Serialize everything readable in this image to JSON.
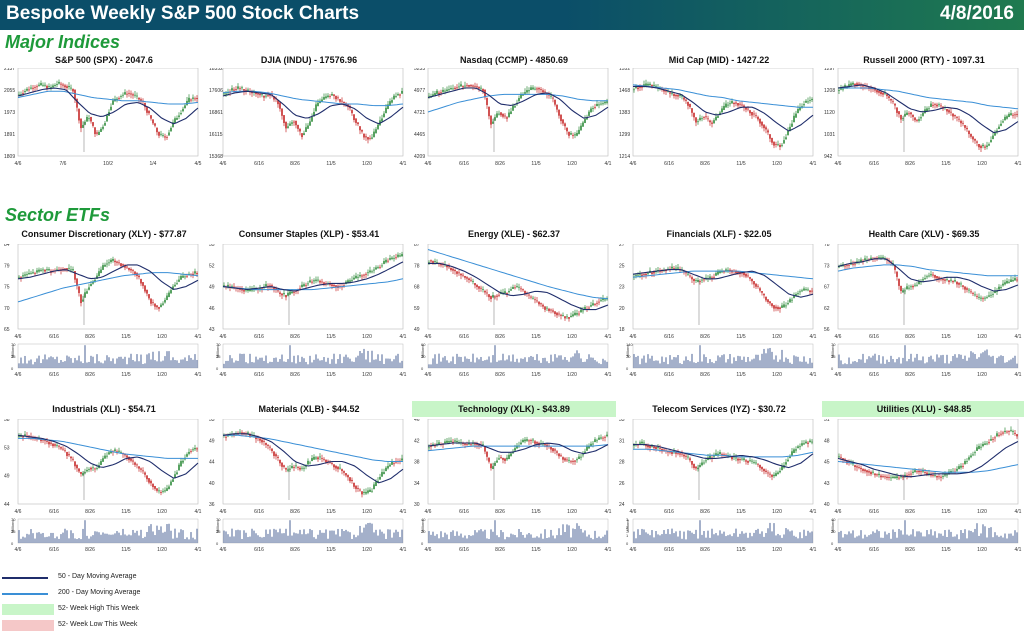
{
  "header": {
    "title": "Bespoke Weekly S&P 500 Stock Charts",
    "date": "4/8/2016"
  },
  "colors": {
    "header_bg": "#0b4e69",
    "header_bg2": "#1f7a4f",
    "section": "#1e9a3a",
    "ma50": "#1f2d6b",
    "ma200": "#3a8fd6",
    "up": "#2e8b3a",
    "down": "#c62828",
    "volume": "#7d8fb3",
    "high_bg": "#c8f5c8",
    "low_bg": "#f5c8c8"
  },
  "sections": {
    "indices": "Major Indices",
    "sectors": "Sector ETFs"
  },
  "legend": {
    "ma50": "50 - Day Moving Average",
    "ma200": "200 - Day Moving Average",
    "high": "52- Week High This Week",
    "low": "52- Week Low This Week"
  },
  "chart_data": [
    {
      "type": "line",
      "title": "S&P 500 (SPX) - 2047.6",
      "yticks": [
        "2137",
        "2055",
        "1973",
        "1891",
        "1809"
      ],
      "xticks": [
        "4/6",
        "7/6",
        "10/2",
        "1/4",
        "4/5"
      ],
      "ylim": [
        1809,
        2137
      ],
      "last": 2047.6,
      "shape": [
        0.72,
        0.78,
        0.82,
        0.84,
        0.8,
        0.86,
        0.82,
        0.78,
        0.3,
        0.45,
        0.2,
        0.35,
        0.62,
        0.7,
        0.74,
        0.7,
        0.62,
        0.42,
        0.22,
        0.18,
        0.38,
        0.52,
        0.66,
        0.68
      ],
      "ma50": [
        0.7,
        0.74,
        0.78,
        0.8,
        0.78,
        0.62,
        0.48,
        0.44,
        0.5,
        0.6,
        0.62,
        0.55,
        0.42,
        0.35,
        0.42,
        0.55
      ],
      "ma200": [
        0.68,
        0.72,
        0.76,
        0.76,
        0.72,
        0.68,
        0.66,
        0.64,
        0.64,
        0.62,
        0.6,
        0.6,
        0.62
      ],
      "highlight": "none",
      "volume": false
    },
    {
      "type": "line",
      "title": "DJIA (INDU) - 17576.96",
      "yticks": [
        "18352",
        "17606",
        "16861",
        "16115",
        "15368"
      ],
      "xticks": [
        "4/6",
        "6/16",
        "8/26",
        "11/5",
        "1/20",
        "4/1"
      ],
      "ylim": [
        15368,
        18352
      ],
      "last": 17576.96,
      "shape": [
        0.72,
        0.78,
        0.8,
        0.76,
        0.74,
        0.7,
        0.72,
        0.62,
        0.3,
        0.4,
        0.2,
        0.35,
        0.6,
        0.68,
        0.72,
        0.64,
        0.58,
        0.38,
        0.2,
        0.16,
        0.35,
        0.55,
        0.7,
        0.74
      ],
      "ma50": [
        0.7,
        0.74,
        0.76,
        0.74,
        0.72,
        0.6,
        0.46,
        0.42,
        0.48,
        0.58,
        0.6,
        0.54,
        0.42,
        0.35,
        0.44,
        0.56
      ],
      "ma200": [
        0.74,
        0.76,
        0.76,
        0.74,
        0.7,
        0.66,
        0.64,
        0.62,
        0.6,
        0.6,
        0.58,
        0.58,
        0.6
      ],
      "highlight": "none",
      "volume": false
    },
    {
      "type": "line",
      "title": "Nasdaq (CCMP) - 4850.69",
      "yticks": [
        "5233",
        "4977",
        "4721",
        "4465",
        "4209"
      ],
      "xticks": [
        "4/6",
        "6/16",
        "8/26",
        "11/5",
        "1/20",
        "4/1"
      ],
      "ylim": [
        4209,
        5233
      ],
      "last": 4850.69,
      "shape": [
        0.68,
        0.74,
        0.76,
        0.8,
        0.82,
        0.84,
        0.82,
        0.78,
        0.35,
        0.5,
        0.42,
        0.58,
        0.72,
        0.78,
        0.8,
        0.74,
        0.66,
        0.42,
        0.22,
        0.2,
        0.38,
        0.55,
        0.6,
        0.62
      ],
      "ma50": [
        0.68,
        0.72,
        0.76,
        0.8,
        0.8,
        0.72,
        0.6,
        0.58,
        0.64,
        0.72,
        0.74,
        0.66,
        0.52,
        0.42,
        0.46,
        0.56
      ],
      "ma200": [
        0.5,
        0.56,
        0.62,
        0.66,
        0.7,
        0.72,
        0.72,
        0.72,
        0.72,
        0.7,
        0.66,
        0.64,
        0.64
      ],
      "highlight": "none",
      "volume": false
    },
    {
      "type": "line",
      "title": "Mid Cap (MID) - 1427.22",
      "yticks": [
        "1552",
        "1468",
        "1383",
        "1299",
        "1214"
      ],
      "xticks": [
        "4/6",
        "6/16",
        "8/26",
        "11/5",
        "1/20",
        "4/1"
      ],
      "ylim": [
        1214,
        1552
      ],
      "last": 1427.22,
      "shape": [
        0.8,
        0.82,
        0.84,
        0.8,
        0.76,
        0.72,
        0.7,
        0.6,
        0.38,
        0.45,
        0.35,
        0.48,
        0.6,
        0.62,
        0.58,
        0.5,
        0.42,
        0.28,
        0.1,
        0.08,
        0.28,
        0.5,
        0.62,
        0.66
      ],
      "ma50": [
        0.82,
        0.82,
        0.8,
        0.76,
        0.72,
        0.62,
        0.5,
        0.46,
        0.5,
        0.56,
        0.56,
        0.48,
        0.36,
        0.26,
        0.34,
        0.46
      ],
      "ma200": [
        0.84,
        0.82,
        0.8,
        0.78,
        0.74,
        0.7,
        0.68,
        0.64,
        0.62,
        0.6,
        0.58,
        0.56,
        0.56
      ],
      "highlight": "none",
      "volume": false
    },
    {
      "type": "line",
      "title": "Russell 2000 (RTY) - 1097.31",
      "yticks": [
        "1297",
        "1208",
        "1120",
        "1031",
        "942"
      ],
      "xticks": [
        "4/6",
        "6/16",
        "8/26",
        "11/5",
        "1/20",
        "4/1"
      ],
      "ylim": [
        942,
        1297
      ],
      "last": 1097.31,
      "shape": [
        0.78,
        0.82,
        0.86,
        0.84,
        0.8,
        0.76,
        0.72,
        0.6,
        0.42,
        0.5,
        0.38,
        0.5,
        0.6,
        0.58,
        0.52,
        0.44,
        0.34,
        0.2,
        0.08,
        0.06,
        0.22,
        0.38,
        0.46,
        0.48
      ],
      "ma50": [
        0.8,
        0.82,
        0.84,
        0.8,
        0.74,
        0.64,
        0.54,
        0.5,
        0.52,
        0.56,
        0.54,
        0.46,
        0.34,
        0.24,
        0.28,
        0.38
      ],
      "ma200": [
        0.8,
        0.8,
        0.8,
        0.78,
        0.76,
        0.72,
        0.68,
        0.66,
        0.64,
        0.62,
        0.58,
        0.56,
        0.54
      ],
      "highlight": "none",
      "volume": false
    },
    {
      "type": "line",
      "title": "Consumer Discretionary (XLY) - $77.87",
      "yticks": [
        "84",
        "79",
        "75",
        "70",
        "65"
      ],
      "xticks": [
        "4/6",
        "6/16",
        "8/26",
        "11/5",
        "1/20",
        "4/1"
      ],
      "ylim": [
        65,
        84
      ],
      "last": 77.87,
      "vlim": [
        "70",
        "35",
        "0"
      ],
      "shape": [
        0.62,
        0.66,
        0.68,
        0.72,
        0.7,
        0.72,
        0.74,
        0.7,
        0.3,
        0.5,
        0.62,
        0.78,
        0.84,
        0.8,
        0.74,
        0.68,
        0.52,
        0.3,
        0.22,
        0.34,
        0.52,
        0.62,
        0.66,
        0.68
      ],
      "ma50": [
        0.6,
        0.62,
        0.66,
        0.7,
        0.72,
        0.66,
        0.6,
        0.62,
        0.7,
        0.78,
        0.78,
        0.7,
        0.56,
        0.46,
        0.5,
        0.58
      ],
      "ma200": [
        0.3,
        0.36,
        0.42,
        0.48,
        0.52,
        0.56,
        0.6,
        0.64,
        0.66,
        0.68,
        0.68,
        0.66,
        0.64
      ],
      "highlight": "none",
      "volume": true
    },
    {
      "type": "line",
      "title": "Consumer Staples (XLP) - $53.41",
      "yticks": [
        "55",
        "52",
        "49",
        "46",
        "43"
      ],
      "xticks": [
        "4/6",
        "6/16",
        "8/26",
        "11/5",
        "1/20",
        "4/1"
      ],
      "ylim": [
        43,
        55
      ],
      "last": 53.41,
      "vlim": [
        "70",
        "35",
        "0"
      ],
      "shape": [
        0.5,
        0.5,
        0.46,
        0.44,
        0.46,
        0.5,
        0.52,
        0.42,
        0.38,
        0.44,
        0.5,
        0.56,
        0.58,
        0.54,
        0.52,
        0.5,
        0.56,
        0.62,
        0.66,
        0.7,
        0.76,
        0.84,
        0.88,
        0.9
      ],
      "ma50": [
        0.5,
        0.48,
        0.46,
        0.48,
        0.5,
        0.46,
        0.44,
        0.48,
        0.52,
        0.54,
        0.54,
        0.56,
        0.6,
        0.66,
        0.74,
        0.82
      ],
      "ma200": [
        0.5,
        0.48,
        0.46,
        0.46,
        0.46,
        0.46,
        0.46,
        0.48,
        0.5,
        0.52,
        0.54,
        0.56,
        0.6
      ],
      "highlight": "none",
      "volume": true
    },
    {
      "type": "line",
      "title": "Energy (XLE) - $62.37",
      "yticks": [
        "87",
        "78",
        "68",
        "59",
        "49"
      ],
      "xticks": [
        "4/6",
        "6/16",
        "8/26",
        "11/5",
        "1/20",
        "4/1"
      ],
      "ylim": [
        49,
        87
      ],
      "last": 62.37,
      "vlim": [
        "60",
        "30",
        "0"
      ],
      "shape": [
        0.84,
        0.8,
        0.78,
        0.72,
        0.66,
        0.6,
        0.52,
        0.44,
        0.36,
        0.4,
        0.42,
        0.5,
        0.46,
        0.36,
        0.3,
        0.22,
        0.18,
        0.12,
        0.1,
        0.14,
        0.2,
        0.26,
        0.32,
        0.34
      ],
      "ma50": [
        0.8,
        0.8,
        0.76,
        0.7,
        0.62,
        0.52,
        0.42,
        0.38,
        0.4,
        0.44,
        0.42,
        0.34,
        0.26,
        0.2,
        0.2,
        0.26
      ],
      "ma200": [
        0.98,
        0.92,
        0.86,
        0.8,
        0.74,
        0.68,
        0.62,
        0.56,
        0.5,
        0.45,
        0.4,
        0.36,
        0.34
      ],
      "highlight": "none",
      "volume": true
    },
    {
      "type": "line",
      "title": "Financials (XLF) - $22.05",
      "yticks": [
        "27",
        "25",
        "23",
        "20",
        "18"
      ],
      "xticks": [
        "4/6",
        "6/16",
        "8/26",
        "11/5",
        "1/20",
        "4/1"
      ],
      "ylim": [
        18,
        27
      ],
      "last": 22.05,
      "vlim": [
        "140",
        "70",
        "0"
      ],
      "shape": [
        0.64,
        0.66,
        0.68,
        0.7,
        0.72,
        0.74,
        0.72,
        0.64,
        0.56,
        0.6,
        0.62,
        0.68,
        0.72,
        0.7,
        0.68,
        0.6,
        0.48,
        0.34,
        0.24,
        0.22,
        0.3,
        0.42,
        0.46,
        0.44
      ],
      "ma50": [
        0.66,
        0.68,
        0.7,
        0.72,
        0.72,
        0.66,
        0.6,
        0.6,
        0.64,
        0.68,
        0.7,
        0.64,
        0.52,
        0.4,
        0.36,
        0.4
      ],
      "ma200": [
        0.62,
        0.64,
        0.66,
        0.68,
        0.7,
        0.7,
        0.7,
        0.7,
        0.68,
        0.66,
        0.64,
        0.62,
        0.6
      ],
      "highlight": "none",
      "volume": true
    },
    {
      "type": "line",
      "title": "Health Care (XLV) - $69.35",
      "yticks": [
        "78",
        "73",
        "67",
        "62",
        "56"
      ],
      "xticks": [
        "4/6",
        "6/16",
        "8/26",
        "11/5",
        "1/20",
        "4/1"
      ],
      "ylim": [
        56,
        78
      ],
      "last": 69.35,
      "vlim": [
        "70",
        "35",
        "0"
      ],
      "shape": [
        0.76,
        0.78,
        0.8,
        0.84,
        0.86,
        0.88,
        0.86,
        0.78,
        0.42,
        0.5,
        0.52,
        0.62,
        0.66,
        0.6,
        0.58,
        0.56,
        0.5,
        0.42,
        0.34,
        0.36,
        0.42,
        0.52,
        0.56,
        0.6
      ],
      "ma50": [
        0.76,
        0.8,
        0.82,
        0.86,
        0.86,
        0.74,
        0.6,
        0.56,
        0.58,
        0.62,
        0.62,
        0.58,
        0.5,
        0.44,
        0.46,
        0.52
      ],
      "ma200": [
        0.7,
        0.74,
        0.76,
        0.78,
        0.78,
        0.76,
        0.72,
        0.7,
        0.68,
        0.66,
        0.64,
        0.64,
        0.64
      ],
      "highlight": "none",
      "volume": true
    },
    {
      "type": "line",
      "title": "Industrials (XLI) - $54.71",
      "yticks": [
        "58",
        "53",
        "49",
        "44"
      ],
      "xticks": [
        "4/6",
        "6/16",
        "8/26",
        "11/5",
        "1/20",
        "4/1"
      ],
      "ylim": [
        44,
        58
      ],
      "last": 54.71,
      "vlim": [
        "70",
        "35",
        "0"
      ],
      "shape": [
        0.82,
        0.84,
        0.8,
        0.78,
        0.74,
        0.7,
        0.62,
        0.5,
        0.32,
        0.42,
        0.4,
        0.56,
        0.64,
        0.62,
        0.56,
        0.46,
        0.36,
        0.22,
        0.1,
        0.12,
        0.3,
        0.5,
        0.64,
        0.68
      ],
      "ma50": [
        0.84,
        0.82,
        0.8,
        0.76,
        0.7,
        0.6,
        0.48,
        0.42,
        0.46,
        0.54,
        0.56,
        0.5,
        0.38,
        0.28,
        0.34,
        0.48
      ],
      "ma200": [
        0.8,
        0.8,
        0.78,
        0.76,
        0.72,
        0.68,
        0.64,
        0.6,
        0.58,
        0.56,
        0.54,
        0.54,
        0.54
      ],
      "highlight": "none",
      "volume": true
    },
    {
      "type": "line",
      "title": "Materials (XLB) - $44.52",
      "yticks": [
        "53",
        "49",
        "44",
        "40",
        "36"
      ],
      "xticks": [
        "4/6",
        "6/16",
        "8/26",
        "11/5",
        "1/20",
        "4/1"
      ],
      "ylim": [
        36,
        53
      ],
      "last": 44.52,
      "vlim": [
        "70",
        "35",
        "0"
      ],
      "shape": [
        0.82,
        0.86,
        0.88,
        0.86,
        0.82,
        0.76,
        0.66,
        0.52,
        0.38,
        0.44,
        0.4,
        0.5,
        0.56,
        0.52,
        0.46,
        0.4,
        0.3,
        0.16,
        0.08,
        0.12,
        0.28,
        0.42,
        0.5,
        0.52
      ],
      "ma50": [
        0.84,
        0.86,
        0.86,
        0.82,
        0.76,
        0.64,
        0.5,
        0.44,
        0.46,
        0.5,
        0.5,
        0.44,
        0.32,
        0.22,
        0.28,
        0.4
      ],
      "ma200": [
        0.84,
        0.84,
        0.82,
        0.8,
        0.76,
        0.72,
        0.68,
        0.64,
        0.6,
        0.56,
        0.52,
        0.5,
        0.5
      ],
      "highlight": "none",
      "volume": true
    },
    {
      "type": "line",
      "title": "Technology (XLK) - $43.89",
      "yticks": [
        "46",
        "42",
        "38",
        "34",
        "30"
      ],
      "xticks": [
        "4/6",
        "6/16",
        "8/26",
        "11/5",
        "1/20",
        "4/1"
      ],
      "ylim": [
        30,
        46
      ],
      "last": 43.89,
      "vlim": [
        "40",
        "20",
        "0"
      ],
      "shape": [
        0.7,
        0.72,
        0.74,
        0.76,
        0.74,
        0.72,
        0.74,
        0.7,
        0.4,
        0.56,
        0.52,
        0.66,
        0.76,
        0.78,
        0.74,
        0.72,
        0.66,
        0.56,
        0.5,
        0.52,
        0.62,
        0.74,
        0.8,
        0.84
      ],
      "ma50": [
        0.7,
        0.72,
        0.74,
        0.74,
        0.74,
        0.68,
        0.62,
        0.62,
        0.66,
        0.72,
        0.74,
        0.72,
        0.64,
        0.6,
        0.64,
        0.72
      ],
      "ma200": [
        0.64,
        0.66,
        0.68,
        0.7,
        0.7,
        0.7,
        0.7,
        0.7,
        0.7,
        0.7,
        0.7,
        0.7,
        0.72
      ],
      "highlight": "high",
      "volume": true
    },
    {
      "type": "line",
      "title": "Telecom Services (IYZ) - $30.72",
      "yticks": [
        "33",
        "31",
        "28",
        "26",
        "24"
      ],
      "xticks": [
        "4/6",
        "6/16",
        "8/26",
        "11/5",
        "1/20",
        "4/1"
      ],
      "ylim": [
        24,
        33
      ],
      "last": 30.72,
      "vlim": [
        "3",
        "2",
        "1",
        "0"
      ],
      "shape": [
        0.72,
        0.74,
        0.7,
        0.68,
        0.64,
        0.62,
        0.6,
        0.54,
        0.4,
        0.5,
        0.56,
        0.6,
        0.58,
        0.54,
        0.52,
        0.5,
        0.46,
        0.36,
        0.3,
        0.4,
        0.56,
        0.68,
        0.74,
        0.76
      ],
      "ma50": [
        0.72,
        0.72,
        0.7,
        0.66,
        0.62,
        0.58,
        0.54,
        0.54,
        0.56,
        0.58,
        0.56,
        0.52,
        0.46,
        0.42,
        0.48,
        0.6
      ],
      "ma200": [
        0.66,
        0.66,
        0.64,
        0.62,
        0.6,
        0.58,
        0.58,
        0.56,
        0.56,
        0.56,
        0.56,
        0.58,
        0.62
      ],
      "highlight": "none",
      "volume": true
    },
    {
      "type": "line",
      "title": "Utilities (XLU) - $48.85",
      "yticks": [
        "51",
        "48",
        "45",
        "43",
        "40"
      ],
      "xticks": [
        "4/6",
        "6/16",
        "8/26",
        "11/5",
        "1/20",
        "4/1"
      ],
      "ylim": [
        40,
        51
      ],
      "last": 48.85,
      "vlim": [
        "40",
        "20",
        "0"
      ],
      "shape": [
        0.56,
        0.5,
        0.44,
        0.4,
        0.36,
        0.32,
        0.3,
        0.28,
        0.3,
        0.34,
        0.38,
        0.36,
        0.32,
        0.3,
        0.34,
        0.38,
        0.46,
        0.58,
        0.68,
        0.74,
        0.82,
        0.88,
        0.9,
        0.84
      ],
      "ma50": [
        0.54,
        0.5,
        0.46,
        0.4,
        0.36,
        0.32,
        0.3,
        0.32,
        0.34,
        0.34,
        0.34,
        0.36,
        0.44,
        0.56,
        0.68,
        0.76
      ],
      "ma200": [
        0.5,
        0.48,
        0.46,
        0.44,
        0.42,
        0.4,
        0.38,
        0.36,
        0.36,
        0.36,
        0.38,
        0.42,
        0.46
      ],
      "highlight": "high",
      "volume": true
    }
  ]
}
